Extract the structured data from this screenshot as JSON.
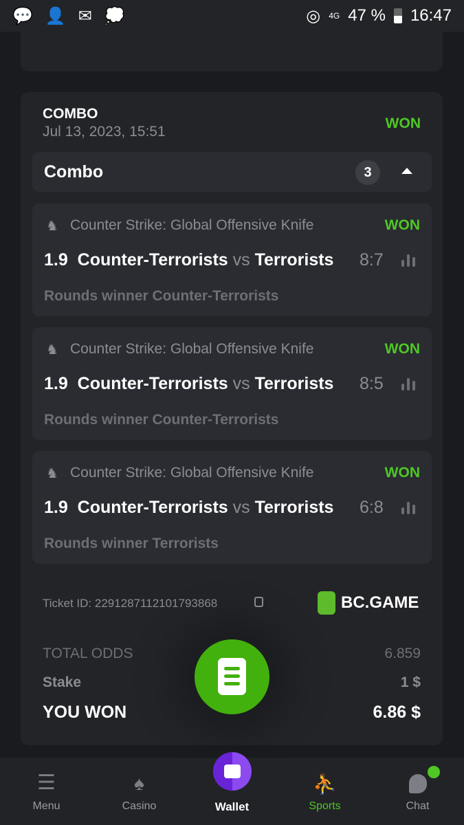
{
  "status_bar": {
    "battery": "47 %",
    "time": "16:47",
    "network": "4G"
  },
  "bet": {
    "type": "COMBO",
    "date": "Jul 13, 2023, 15:51",
    "status": "WON",
    "combo_label": "Combo",
    "leg_count": "3",
    "legs": [
      {
        "sport": "Counter Strike: Global Offensive Knife",
        "status": "WON",
        "odds": "1.9",
        "home": "Counter-Terrorists",
        "vs": "vs",
        "away": "Terrorists",
        "score": "8:7",
        "market": "Rounds winner Counter-Terrorists"
      },
      {
        "sport": "Counter Strike: Global Offensive Knife",
        "status": "WON",
        "odds": "1.9",
        "home": "Counter-Terrorists",
        "vs": "vs",
        "away": "Terrorists",
        "score": "8:5",
        "market": "Rounds winner Counter-Terrorists"
      },
      {
        "sport": "Counter Strike: Global Offensive Knife",
        "status": "WON",
        "odds": "1.9",
        "home": "Counter-Terrorists",
        "vs": "vs",
        "away": "Terrorists",
        "score": "6:8",
        "market": "Rounds winner Terrorists"
      }
    ],
    "ticket_id": "Ticket ID: 2291287112101793868",
    "brand": "BC.GAME",
    "total_odds_label": "TOTAL ODDS",
    "total_odds": "6.859",
    "stake_label": "Stake",
    "stake": "1 $",
    "won_label": "YOU WON",
    "won": "6.86 $"
  },
  "nav": [
    {
      "label": "Menu"
    },
    {
      "label": "Casino"
    },
    {
      "label": "Wallet"
    },
    {
      "label": "Sports"
    },
    {
      "label": "Chat"
    }
  ],
  "colors": {
    "accent": "#4fc724",
    "wallet": "#7b3fe4",
    "card": "#232428"
  }
}
